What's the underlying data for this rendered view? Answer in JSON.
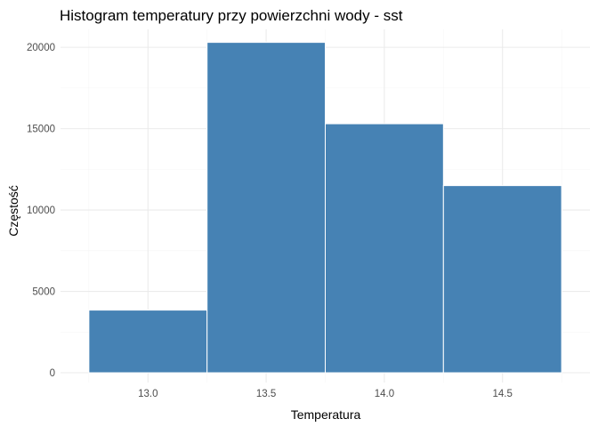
{
  "chart_data": {
    "type": "histogram",
    "title": "Histogram temperatury przy powierzchni wody - sst",
    "xlabel": "Temperatura",
    "ylabel": "Częstość",
    "bins": [
      {
        "x_start": 12.75,
        "x_end": 13.25,
        "count": 3850
      },
      {
        "x_start": 13.25,
        "x_end": 13.75,
        "count": 20300
      },
      {
        "x_start": 13.75,
        "x_end": 14.25,
        "count": 15300
      },
      {
        "x_start": 14.25,
        "x_end": 14.75,
        "count": 11500
      }
    ],
    "xlim": [
      12.63,
      14.87
    ],
    "ylim": [
      -600,
      21100
    ],
    "x_ticks": [
      13.0,
      13.5,
      14.0,
      14.5
    ],
    "x_tick_labels": [
      "13.0",
      "13.5",
      "14.0",
      "14.5"
    ],
    "y_ticks": [
      0,
      5000,
      10000,
      15000,
      20000
    ],
    "y_tick_labels": [
      "0",
      "5000",
      "10000",
      "15000",
      "20000"
    ],
    "bar_color": "#4682B4",
    "bar_outline_color": "#ffffff",
    "grid": true,
    "legend": "none"
  }
}
